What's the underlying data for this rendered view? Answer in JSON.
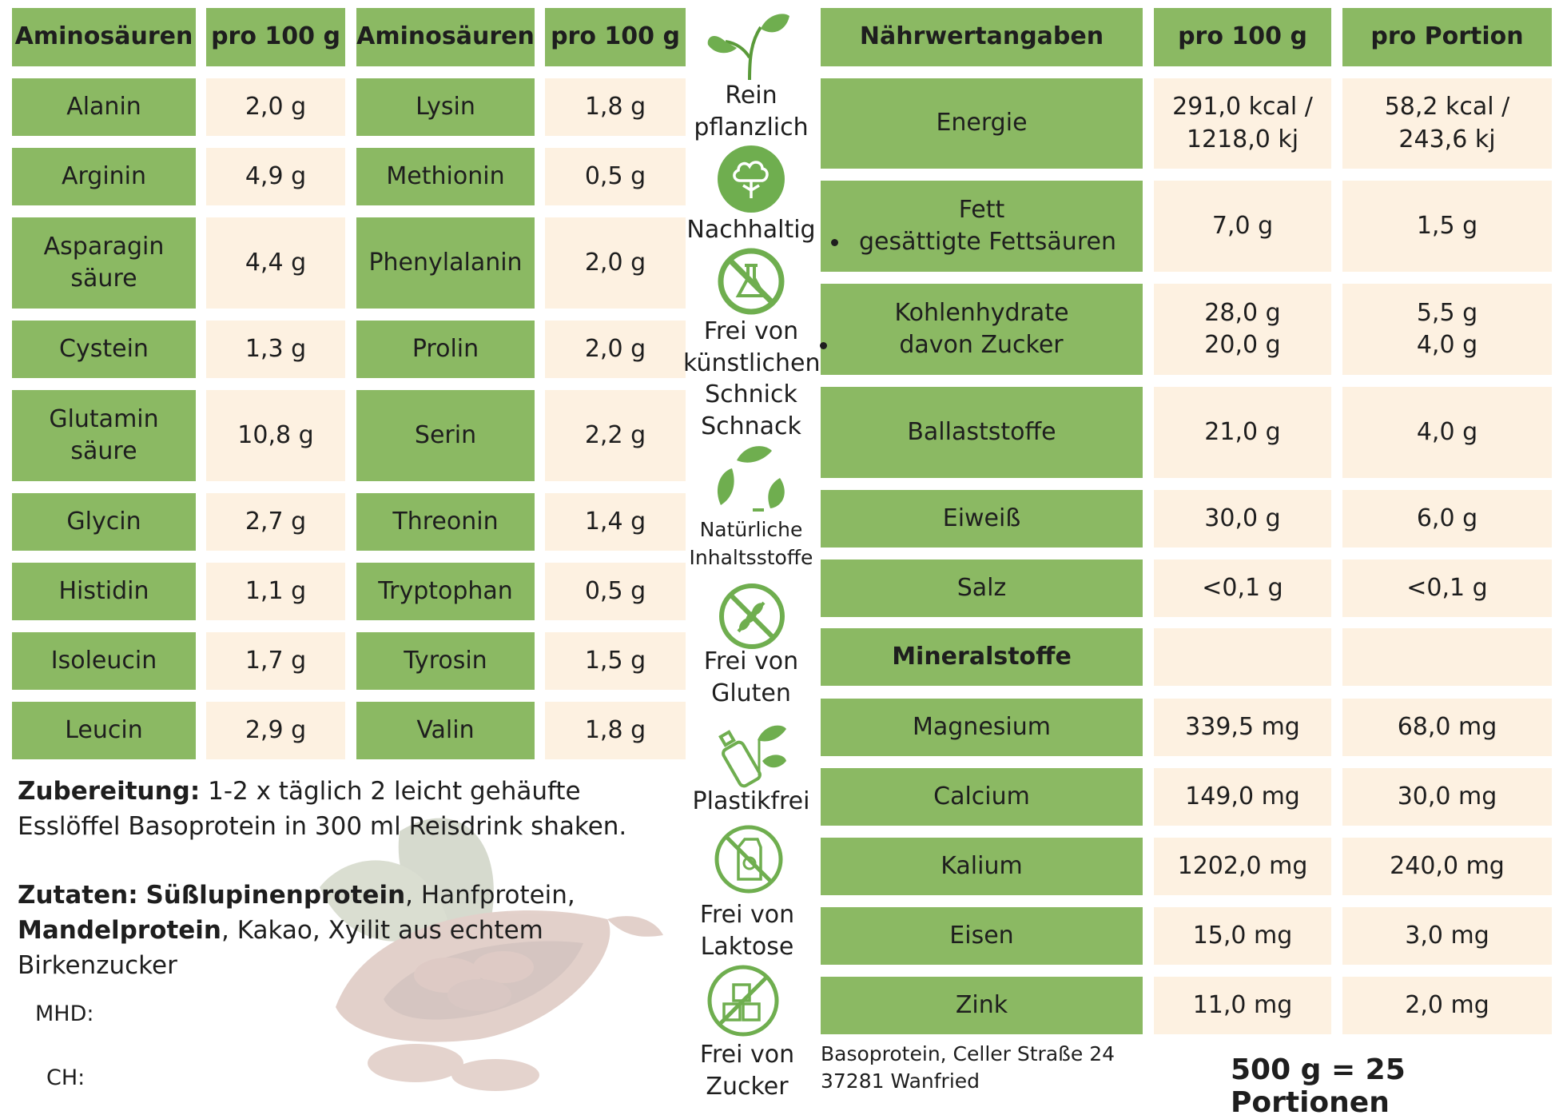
{
  "amino_table_left": {
    "header_name": "Aminosäuren",
    "header_value": "pro 100 g",
    "rows": [
      {
        "name": "Alanin",
        "value": "2,0 g"
      },
      {
        "name": "Arginin",
        "value": "4,9 g"
      },
      {
        "name": "Asparagin säure",
        "value": "4,4 g"
      },
      {
        "name": "Cystein",
        "value": "1,3 g"
      },
      {
        "name": "Glutamin säure",
        "value": "10,8 g"
      },
      {
        "name": "Glycin",
        "value": "2,7 g"
      },
      {
        "name": "Histidin",
        "value": "1,1 g"
      },
      {
        "name": "Isoleucin",
        "value": "1,7 g"
      },
      {
        "name": "Leucin",
        "value": "2,9 g"
      }
    ]
  },
  "amino_table_right": {
    "header_name": "Aminosäuren",
    "header_value": "pro 100 g",
    "rows": [
      {
        "name": "Lysin",
        "value": "1,8 g"
      },
      {
        "name": "Methionin",
        "value": "0,5 g"
      },
      {
        "name": "Phenylalanin",
        "value": "2,0 g"
      },
      {
        "name": "Prolin",
        "value": "2,0 g"
      },
      {
        "name": "Serin",
        "value": "2,2 g"
      },
      {
        "name": "Threonin",
        "value": "1,4 g"
      },
      {
        "name": "Tryptophan",
        "value": "0,5 g"
      },
      {
        "name": "Tyrosin",
        "value": "1,5 g"
      },
      {
        "name": "Valin",
        "value": "1,8 g"
      }
    ]
  },
  "badges": [
    {
      "icon": "plant-sprout-icon",
      "label": "Rein pflanzlich"
    },
    {
      "icon": "cotton-plant-icon",
      "label": "Nachhaltig"
    },
    {
      "icon": "no-chemicals-icon",
      "label": "Frei von künstlichen Schnick Schnack"
    },
    {
      "icon": "recycle-leaves-icon",
      "label": "Natürliche Inhaltsstoffe"
    },
    {
      "icon": "gluten-free-icon",
      "label": "Frei von Gluten"
    },
    {
      "icon": "plastic-free-icon",
      "label": "Plastikfrei"
    },
    {
      "icon": "lactose-free-icon",
      "label": "Frei von Laktose"
    },
    {
      "icon": "sugar-free-icon",
      "label": "Frei von Zucker"
    }
  ],
  "nutrition": {
    "header_name": "Nährwertangaben",
    "header_100g": "pro 100 g",
    "header_portion": "pro Portion",
    "energie": {
      "name": "Energie",
      "v100": "291,0 kcal / 1218,0 kj",
      "portion": "58,2 kcal / 243,6 kj"
    },
    "fett": {
      "name": "Fett",
      "sub": "gesättigte Fettsäuren",
      "v100": "7,0 g",
      "portion": "1,5 g"
    },
    "kohlenhydrate": {
      "name": "Kohlenhydrate",
      "sub": "davon Zucker",
      "v100_a": "28,0 g",
      "v100_b": "20,0 g",
      "portion_a": "5,5 g",
      "portion_b": "4,0 g"
    },
    "rows_mid": [
      {
        "name": "Ballaststoffe",
        "v100": "21,0 g",
        "portion": "4,0 g"
      },
      {
        "name": "Eiweiß",
        "v100": "30,0 g",
        "portion": "6,0 g"
      },
      {
        "name": "Salz",
        "v100": "<0,1 g",
        "portion": "<0,1 g"
      }
    ],
    "minerals_header": "Mineralstoffe",
    "minerals": [
      {
        "name": "Magnesium",
        "v100": "339,5 mg",
        "portion": "68,0 mg"
      },
      {
        "name": "Calcium",
        "v100": "149,0 mg",
        "portion": "30,0 mg"
      },
      {
        "name": "Kalium",
        "v100": "1202,0 mg",
        "portion": "240,0 mg"
      },
      {
        "name": "Eisen",
        "v100": "15,0 mg",
        "portion": "3,0 mg"
      },
      {
        "name": "Zink",
        "v100": "11,0 mg",
        "portion": "2,0 mg"
      }
    ]
  },
  "zubereitung": {
    "label": "Zubereitung:",
    "text": "1-2 x täglich 2 leicht gehäufte Esslöffel Basoprotein in 300 ml Reisdrink shaken."
  },
  "zutaten": {
    "label": "Zutaten:",
    "item1": "Süßlupinenprotein",
    "sep1": ", Hanfprotein,",
    "item2": "Mandelprotein",
    "rest": ", Kakao, Xyilit aus echtem Birkenzucker"
  },
  "mhd_label": "MHD:",
  "ch_label": "CH:",
  "address": {
    "line1": "Basoprotein, Celler Straße 24",
    "line2": "37281 Wanfried"
  },
  "portions": "500 g = 25 Portionen",
  "colors": {
    "green": "#8bb963",
    "cream": "#fdf1e1",
    "icon_green": "#6fae4f"
  }
}
